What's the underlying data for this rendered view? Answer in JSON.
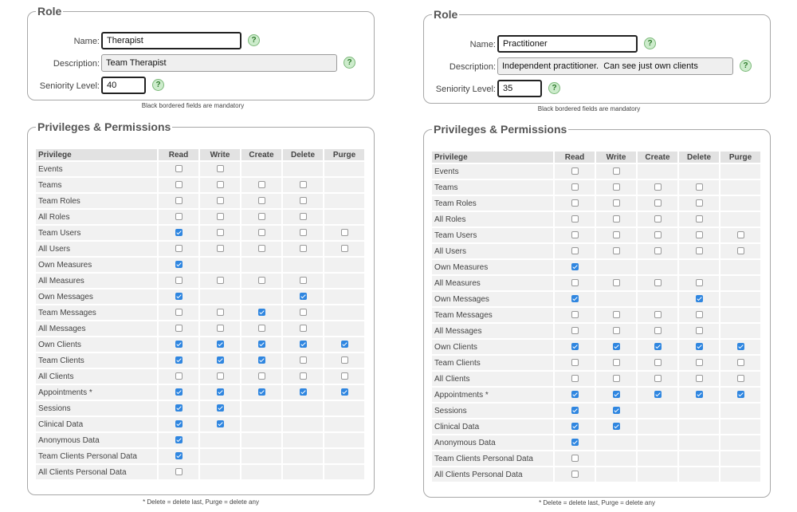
{
  "left": {
    "role": {
      "legend": "Role",
      "name_label": "Name:",
      "name_value": "Therapist",
      "description_label": "Description:",
      "description_value": "Team Therapist",
      "seniority_label": "Seniority Level:",
      "seniority_value": "40",
      "help_glyph": "?",
      "note": "Black bordered fields are mandatory"
    },
    "privileges": {
      "legend": "Privileges & Permissions",
      "columns": [
        "Privilege",
        "Read",
        "Write",
        "Create",
        "Delete",
        "Purge"
      ],
      "rows": [
        {
          "name": "Events",
          "perms": [
            0,
            0,
            null,
            null,
            null
          ]
        },
        {
          "name": "Teams",
          "perms": [
            0,
            0,
            0,
            0,
            null
          ]
        },
        {
          "name": "Team Roles",
          "perms": [
            0,
            0,
            0,
            0,
            null
          ]
        },
        {
          "name": "All Roles",
          "perms": [
            0,
            0,
            0,
            0,
            null
          ]
        },
        {
          "name": "Team Users",
          "perms": [
            1,
            0,
            0,
            0,
            0
          ]
        },
        {
          "name": "All Users",
          "perms": [
            0,
            0,
            0,
            0,
            0
          ]
        },
        {
          "name": "Own Measures",
          "perms": [
            1,
            null,
            null,
            null,
            null
          ]
        },
        {
          "name": "All Measures",
          "perms": [
            0,
            0,
            0,
            0,
            null
          ]
        },
        {
          "name": "Own Messages",
          "perms": [
            1,
            null,
            null,
            1,
            null
          ]
        },
        {
          "name": "Team Messages",
          "perms": [
            0,
            0,
            1,
            0,
            null
          ]
        },
        {
          "name": "All Messages",
          "perms": [
            0,
            0,
            0,
            0,
            null
          ]
        },
        {
          "name": "Own Clients",
          "perms": [
            1,
            1,
            1,
            1,
            1
          ]
        },
        {
          "name": "Team Clients",
          "perms": [
            1,
            1,
            1,
            0,
            0
          ]
        },
        {
          "name": "All Clients",
          "perms": [
            0,
            0,
            0,
            0,
            0
          ]
        },
        {
          "name": "Appointments *",
          "perms": [
            1,
            1,
            1,
            1,
            1
          ]
        },
        {
          "name": "Sessions",
          "perms": [
            1,
            1,
            null,
            null,
            null
          ]
        },
        {
          "name": "Clinical Data",
          "perms": [
            1,
            1,
            null,
            null,
            null
          ]
        },
        {
          "name": "Anonymous Data",
          "perms": [
            1,
            null,
            null,
            null,
            null
          ]
        },
        {
          "name": "Team Clients Personal Data",
          "perms": [
            1,
            null,
            null,
            null,
            null
          ]
        },
        {
          "name": "All Clients Personal Data",
          "perms": [
            0,
            null,
            null,
            null,
            null
          ]
        }
      ],
      "footnote": "* Delete = delete last, Purge = delete any"
    }
  },
  "right": {
    "role": {
      "legend": "Role",
      "name_label": "Name:",
      "name_value": "Practitioner",
      "description_label": "Description:",
      "description_value": "Independent practitioner.  Can see just own clients",
      "seniority_label": "Seniority Level:",
      "seniority_value": "35",
      "help_glyph": "?",
      "note": "Black bordered fields are mandatory"
    },
    "privileges": {
      "legend": "Privileges & Permissions",
      "columns": [
        "Privilege",
        "Read",
        "Write",
        "Create",
        "Delete",
        "Purge"
      ],
      "rows": [
        {
          "name": "Events",
          "perms": [
            0,
            0,
            null,
            null,
            null
          ]
        },
        {
          "name": "Teams",
          "perms": [
            0,
            0,
            0,
            0,
            null
          ]
        },
        {
          "name": "Team Roles",
          "perms": [
            0,
            0,
            0,
            0,
            null
          ]
        },
        {
          "name": "All Roles",
          "perms": [
            0,
            0,
            0,
            0,
            null
          ]
        },
        {
          "name": "Team Users",
          "perms": [
            0,
            0,
            0,
            0,
            0
          ]
        },
        {
          "name": "All Users",
          "perms": [
            0,
            0,
            0,
            0,
            0
          ]
        },
        {
          "name": "Own Measures",
          "perms": [
            1,
            null,
            null,
            null,
            null
          ]
        },
        {
          "name": "All Measures",
          "perms": [
            0,
            0,
            0,
            0,
            null
          ]
        },
        {
          "name": "Own Messages",
          "perms": [
            1,
            null,
            null,
            1,
            null
          ]
        },
        {
          "name": "Team Messages",
          "perms": [
            0,
            0,
            0,
            0,
            null
          ]
        },
        {
          "name": "All Messages",
          "perms": [
            0,
            0,
            0,
            0,
            null
          ]
        },
        {
          "name": "Own Clients",
          "perms": [
            1,
            1,
            1,
            1,
            1
          ]
        },
        {
          "name": "Team Clients",
          "perms": [
            0,
            0,
            0,
            0,
            0
          ]
        },
        {
          "name": "All Clients",
          "perms": [
            0,
            0,
            0,
            0,
            0
          ]
        },
        {
          "name": "Appointments *",
          "perms": [
            1,
            1,
            1,
            1,
            1
          ]
        },
        {
          "name": "Sessions",
          "perms": [
            1,
            1,
            null,
            null,
            null
          ]
        },
        {
          "name": "Clinical Data",
          "perms": [
            1,
            1,
            null,
            null,
            null
          ]
        },
        {
          "name": "Anonymous Data",
          "perms": [
            1,
            null,
            null,
            null,
            null
          ]
        },
        {
          "name": "Team Clients Personal Data",
          "perms": [
            0,
            null,
            null,
            null,
            null
          ]
        },
        {
          "name": "All Clients Personal Data",
          "perms": [
            0,
            null,
            null,
            null,
            null
          ]
        }
      ],
      "footnote": "* Delete = delete last, Purge = delete any"
    }
  }
}
